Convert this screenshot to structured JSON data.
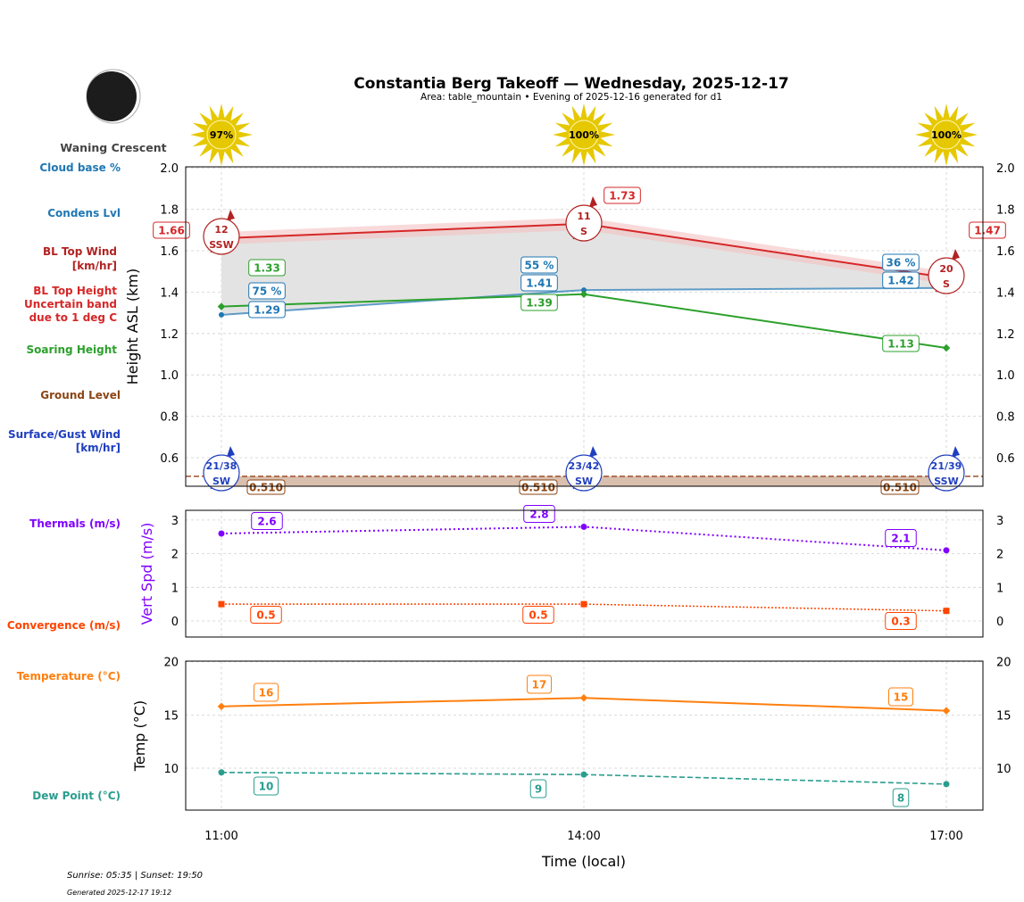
{
  "header": {
    "title": "Constantia Berg Takeoff — Wednesday, 2025-12-17",
    "subtitle": "Area: table_mountain • Evening of 2025-12-16 generated for d1",
    "moon_phase": "Waning Crescent",
    "sunrise_sunset": "Sunrise: 05:35 | Sunset: 19:50",
    "generated": "Generated 2025-12-17 19:12"
  },
  "side_labels": {
    "cloud_base": "Cloud base %",
    "condens": "Condens Lvl",
    "bl_wind_1": "BL Top Wind",
    "bl_wind_2": "[km/hr]",
    "bl_height_1": "BL Top Height",
    "bl_height_2": "Uncertain band",
    "bl_height_3": "due to 1 deg C",
    "soaring": "Soaring Height",
    "ground": "Ground Level",
    "surface_1": "Surface/Gust Wind",
    "surface_2": "[km/hr]",
    "thermals": "Thermals (m/s)",
    "convergence": "Convergence (m/s)",
    "temperature": "Temperature (°C)",
    "dewpoint": "Dew Point (°C)"
  },
  "colors": {
    "bl_top": "#d62728",
    "condens": "#1f77b4",
    "soaring": "#2ca02c",
    "ground": "#8b4513",
    "surface_wind": "#1f3fbf",
    "thermals": "#8000ff",
    "convergence": "#ff4500",
    "temperature": "#ff7f0e",
    "dewpoint": "#2a9d8f",
    "sun": "#e6c800"
  },
  "chart_data": [
    {
      "type": "line",
      "ylabel": "Height ASL (km)",
      "ylim": [
        0.46,
        2.0
      ],
      "yticks": [
        "0.6",
        "0.8",
        "1.0",
        "1.2",
        "1.4",
        "1.6",
        "1.8",
        "2.0"
      ],
      "x": [
        "11:00",
        "14:00",
        "17:00"
      ],
      "grid": true,
      "sun_percent": [
        "97%",
        "100%",
        "100%"
      ],
      "series": {
        "bl_top": {
          "values": [
            1.66,
            1.73,
            1.47
          ],
          "labels": [
            "1.66",
            "1.73",
            "1.47"
          ],
          "band": 0.03
        },
        "condens": {
          "values": [
            1.29,
            1.41,
            1.42
          ],
          "labels": [
            "1.29",
            "1.41",
            "1.42"
          ]
        },
        "cloud_base_pct": {
          "labels": [
            "75 %",
            "55 %",
            "36 %"
          ]
        },
        "soaring": {
          "values": [
            1.33,
            1.39,
            1.13
          ],
          "labels": [
            "1.33",
            "1.39",
            "1.13"
          ]
        },
        "ground": {
          "values": [
            0.51,
            0.51,
            0.51
          ],
          "labels": [
            "0.510",
            "0.510",
            "0.510"
          ]
        },
        "bl_wind": {
          "speed": [
            "12",
            "11",
            "20"
          ],
          "dir": [
            "SSW",
            "S",
            "S"
          ]
        },
        "surface_wind": {
          "speed": [
            "21/38",
            "23/42",
            "21/39"
          ],
          "dir": [
            "SW",
            "SW",
            "SSW"
          ]
        }
      }
    },
    {
      "type": "line",
      "ylabel": "Vert Spd (m/s)",
      "ylim": [
        -0.48,
        3.3
      ],
      "yticks": [
        "0",
        "1",
        "2",
        "3"
      ],
      "x": [
        "11:00",
        "14:00",
        "17:00"
      ],
      "grid": true,
      "series": {
        "thermals": {
          "values": [
            2.6,
            2.8,
            2.1
          ],
          "labels": [
            "2.6",
            "2.8",
            "2.1"
          ]
        },
        "convergence": {
          "values": [
            0.5,
            0.5,
            0.3
          ],
          "labels": [
            "0.5",
            "0.5",
            "0.3"
          ]
        }
      }
    },
    {
      "type": "line",
      "ylabel": "Temp (°C)",
      "xlabel": "Time (local)",
      "ylim": [
        6,
        20
      ],
      "yticks": [
        "10",
        "15",
        "20"
      ],
      "x": [
        "11:00",
        "14:00",
        "17:00"
      ],
      "xticks": [
        "11:00",
        "14:00",
        "17:00"
      ],
      "grid": true,
      "series": {
        "temperature": {
          "values": [
            15.8,
            16.6,
            15.4
          ],
          "labels": [
            "16",
            "17",
            "15"
          ]
        },
        "dewpoint": {
          "values": [
            9.6,
            9.4,
            8.5
          ],
          "labels": [
            "10",
            "9",
            "8"
          ]
        }
      }
    }
  ]
}
